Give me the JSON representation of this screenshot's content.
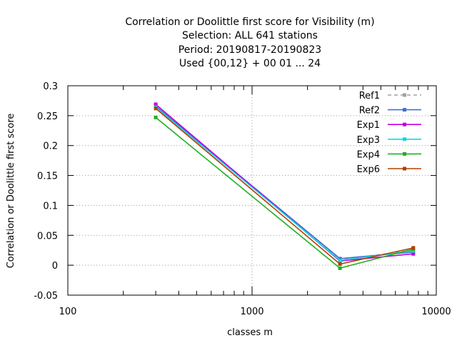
{
  "chart_data": {
    "type": "line",
    "title_lines": [
      "Correlation or Doolittle first score  for Visibility (m)",
      "Selection: ALL    641 stations",
      "Period: 20190817-20190823",
      "Used {00,12} + 00 01 ... 24"
    ],
    "xlabel": "classes m",
    "ylabel": "Correlation or Doolittle first score",
    "x_scale": "log",
    "xlim": [
      100,
      10000
    ],
    "ylim": [
      -0.05,
      0.3
    ],
    "x_ticks": [
      100,
      1000,
      10000
    ],
    "x_tick_labels": [
      "100",
      "1000",
      "10000"
    ],
    "y_ticks": [
      -0.05,
      0,
      0.05,
      0.1,
      0.15,
      0.2,
      0.25,
      0.3
    ],
    "y_tick_labels": [
      "-0.05",
      "0",
      "0.05",
      "0.1",
      "0.15",
      "0.2",
      "0.25",
      "0.3"
    ],
    "grid": true,
    "legend_position": "top-right",
    "x": [
      300,
      3000,
      7500
    ],
    "series": [
      {
        "name": "Ref1",
        "color": "#a0a0a0",
        "dashed": true,
        "values": [
          0.265,
          0.009,
          0.025
        ]
      },
      {
        "name": "Ref2",
        "color": "#4070d0",
        "dashed": false,
        "values": [
          0.266,
          0.011,
          0.022
        ]
      },
      {
        "name": "Exp1",
        "color": "#c000e0",
        "dashed": false,
        "values": [
          0.269,
          0.007,
          0.019
        ]
      },
      {
        "name": "Exp3",
        "color": "#10d8e0",
        "dashed": false,
        "values": [
          0.264,
          0.008,
          0.024
        ]
      },
      {
        "name": "Exp4",
        "color": "#20b020",
        "dashed": false,
        "values": [
          0.247,
          -0.005,
          0.027
        ]
      },
      {
        "name": "Exp6",
        "color": "#b04000",
        "dashed": false,
        "values": [
          0.262,
          0.002,
          0.029
        ]
      }
    ]
  }
}
